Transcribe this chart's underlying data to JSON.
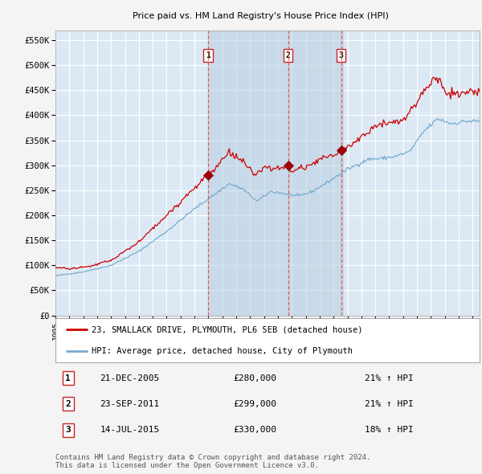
{
  "title": "23, SMALLACK DRIVE, PLYMOUTH, PL6 5EB",
  "subtitle": "Price paid vs. HM Land Registry's House Price Index (HPI)",
  "red_label": "23, SMALLACK DRIVE, PLYMOUTH, PL6 5EB (detached house)",
  "blue_label": "HPI: Average price, detached house, City of Plymouth",
  "ylabel_ticks": [
    "£0",
    "£50K",
    "£100K",
    "£150K",
    "£200K",
    "£250K",
    "£300K",
    "£350K",
    "£400K",
    "£450K",
    "£500K",
    "£550K"
  ],
  "ytick_values": [
    0,
    50000,
    100000,
    150000,
    200000,
    250000,
    300000,
    350000,
    400000,
    450000,
    500000,
    550000
  ],
  "transactions": [
    {
      "num": 1,
      "date": "21-DEC-2005",
      "price": 280000,
      "hpi_pct": "21%",
      "direction": "↑"
    },
    {
      "num": 2,
      "date": "23-SEP-2011",
      "price": 299000,
      "hpi_pct": "21%",
      "direction": "↑"
    },
    {
      "num": 3,
      "date": "14-JUL-2015",
      "price": 330000,
      "hpi_pct": "18%",
      "direction": "↑"
    }
  ],
  "transaction_dates_decimal": [
    2005.97,
    2011.73,
    2015.54
  ],
  "transaction_prices": [
    280000,
    299000,
    330000
  ],
  "footer": "Contains HM Land Registry data © Crown copyright and database right 2024.\nThis data is licensed under the Open Government Licence v3.0.",
  "fig_bg_color": "#f4f4f4",
  "plot_bg_color": "#dce9f5",
  "grid_color": "#ffffff",
  "red_line_color": "#cc0000",
  "blue_line_color": "#7aabcf",
  "dashed_line_color": "#dd4444",
  "shade_color": "#b8cfe0",
  "xmin": 1995.0,
  "xmax": 2025.5,
  "ymin": 0,
  "ymax": 570000
}
